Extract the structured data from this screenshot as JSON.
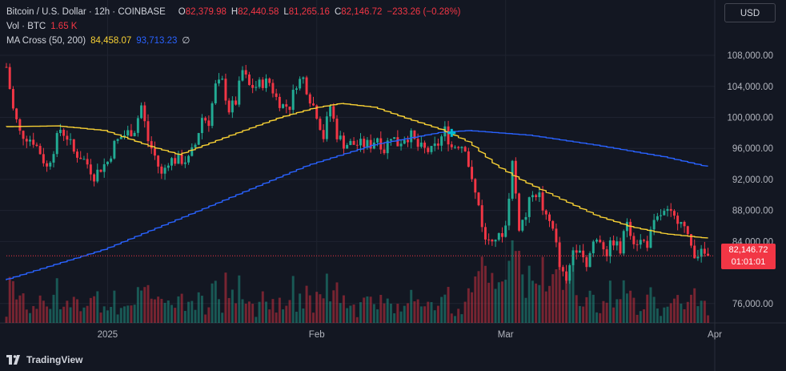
{
  "legend": {
    "symbol": "Bitcoin / U.S. Dollar · 12h · COINBASE",
    "o_label": "O",
    "o_value": "82,379.98",
    "h_label": "H",
    "h_value": "82,440.58",
    "l_label": "L",
    "l_value": "81,265.16",
    "c_label": "C",
    "c_value": "82,146.72",
    "change": "−233.26 (−0.28%)",
    "vol_label": "Vol · BTC",
    "vol_value": "1.65 K",
    "ma_label": "MA Cross (50, 200)",
    "ma_fast": "84,458.07",
    "ma_slow": "93,713.23",
    "ma_suffix": "∅"
  },
  "currency_button": "USD",
  "branding": "TradingView",
  "last_price": {
    "price": "82,146.72",
    "countdown": "01:01:01"
  },
  "colors": {
    "background": "#131722",
    "grid": "#1f2330",
    "up": "#22ab94",
    "down": "#f23645",
    "ma_fast": "#f7d034",
    "ma_slow": "#2962ff",
    "cross_marker": "#00bcd4"
  },
  "chart_data": {
    "type": "candlestick",
    "y_ticks": [
      "108,000.00",
      "104,000.00",
      "100,000.00",
      "96,000.00",
      "92,000.00",
      "88,000.00",
      "84,000.00",
      "76,000.00"
    ],
    "y_tick_values": [
      108000,
      104000,
      100000,
      96000,
      92000,
      88000,
      84000,
      76000
    ],
    "x_ticks": [
      {
        "label": "2025",
        "date": "2025-01-01"
      },
      {
        "label": "Feb",
        "date": "2025-02-01"
      },
      {
        "label": "Mar",
        "date": "2025-03-01"
      },
      {
        "label": "Apr",
        "date": "2025-04-01"
      }
    ],
    "ylim": [
      73500,
      111000
    ],
    "x_range": [
      "2024-12-17",
      "2025-04-01"
    ],
    "close_points": [
      [
        "2024-12-17",
        106500
      ],
      [
        "2024-12-18",
        101000
      ],
      [
        "2024-12-19",
        98000
      ],
      [
        "2024-12-20",
        97500
      ],
      [
        "2024-12-21",
        97000
      ],
      [
        "2024-12-22",
        95500
      ],
      [
        "2024-12-23",
        93500
      ],
      [
        "2024-12-24",
        96000
      ],
      [
        "2024-12-25",
        98500
      ],
      [
        "2024-12-26",
        97500
      ],
      [
        "2024-12-27",
        95500
      ],
      [
        "2024-12-28",
        95000
      ],
      [
        "2024-12-29",
        94000
      ],
      [
        "2024-12-30",
        92500
      ],
      [
        "2024-12-31",
        93500
      ],
      [
        "2025-01-01",
        94300
      ],
      [
        "2025-01-02",
        96500
      ],
      [
        "2025-01-03",
        97500
      ],
      [
        "2025-01-04",
        98000
      ],
      [
        "2025-01-05",
        98500
      ],
      [
        "2025-01-06",
        101500
      ],
      [
        "2025-01-07",
        97000
      ],
      [
        "2025-01-08",
        95000
      ],
      [
        "2025-01-09",
        92500
      ],
      [
        "2025-01-10",
        94500
      ],
      [
        "2025-01-11",
        94500
      ],
      [
        "2025-01-12",
        94500
      ],
      [
        "2025-01-13",
        94500
      ],
      [
        "2025-01-14",
        96500
      ],
      [
        "2025-01-15",
        100000
      ],
      [
        "2025-01-16",
        99500
      ],
      [
        "2025-01-17",
        104000
      ],
      [
        "2025-01-18",
        104500
      ],
      [
        "2025-01-19",
        101000
      ],
      [
        "2025-01-20",
        102000
      ],
      [
        "2025-01-21",
        106000
      ],
      [
        "2025-01-22",
        104000
      ],
      [
        "2025-01-23",
        104000
      ],
      [
        "2025-01-24",
        104500
      ],
      [
        "2025-01-25",
        104500
      ],
      [
        "2025-01-26",
        102500
      ],
      [
        "2025-01-27",
        101500
      ],
      [
        "2025-01-28",
        101500
      ],
      [
        "2025-01-29",
        104500
      ],
      [
        "2025-01-30",
        105000
      ],
      [
        "2025-01-31",
        102500
      ],
      [
        "2025-02-01",
        100500
      ],
      [
        "2025-02-02",
        97500
      ],
      [
        "2025-02-03",
        101500
      ],
      [
        "2025-02-04",
        97800
      ],
      [
        "2025-02-05",
        96600
      ],
      [
        "2025-02-06",
        96600
      ],
      [
        "2025-02-07",
        96500
      ],
      [
        "2025-02-08",
        96500
      ],
      [
        "2025-02-09",
        96500
      ],
      [
        "2025-02-10",
        97500
      ],
      [
        "2025-02-11",
        95800
      ],
      [
        "2025-02-12",
        97800
      ],
      [
        "2025-02-13",
        96600
      ],
      [
        "2025-02-14",
        97500
      ],
      [
        "2025-02-15",
        97600
      ],
      [
        "2025-02-16",
        96200
      ],
      [
        "2025-02-17",
        95800
      ],
      [
        "2025-02-18",
        95600
      ],
      [
        "2025-02-19",
        96600
      ],
      [
        "2025-02-20",
        98300
      ],
      [
        "2025-02-21",
        96200
      ],
      [
        "2025-02-22",
        96600
      ],
      [
        "2025-02-23",
        96300
      ],
      [
        "2025-02-24",
        91500
      ],
      [
        "2025-02-25",
        88700
      ],
      [
        "2025-02-26",
        84000
      ],
      [
        "2025-02-27",
        84800
      ],
      [
        "2025-02-28",
        84400
      ],
      [
        "2025-03-01",
        86000
      ],
      [
        "2025-03-02",
        94200
      ],
      [
        "2025-03-03",
        86000
      ],
      [
        "2025-03-04",
        87300
      ],
      [
        "2025-03-05",
        90600
      ],
      [
        "2025-03-06",
        89900
      ],
      [
        "2025-03-07",
        86800
      ],
      [
        "2025-03-08",
        86200
      ],
      [
        "2025-03-09",
        80700
      ],
      [
        "2025-03-10",
        78500
      ],
      [
        "2025-03-11",
        83000
      ],
      [
        "2025-03-12",
        83600
      ],
      [
        "2025-03-13",
        81000
      ],
      [
        "2025-03-14",
        84000
      ],
      [
        "2025-03-15",
        84300
      ],
      [
        "2025-03-16",
        82600
      ],
      [
        "2025-03-17",
        84100
      ],
      [
        "2025-03-18",
        82700
      ],
      [
        "2025-03-19",
        86800
      ],
      [
        "2025-03-20",
        84200
      ],
      [
        "2025-03-21",
        84000
      ],
      [
        "2025-03-22",
        83800
      ],
      [
        "2025-03-23",
        86100
      ],
      [
        "2025-03-24",
        87500
      ],
      [
        "2025-03-25",
        87600
      ],
      [
        "2025-03-26",
        86900
      ],
      [
        "2025-03-27",
        87200
      ],
      [
        "2025-03-28",
        84300
      ],
      [
        "2025-03-29",
        82600
      ],
      [
        "2025-03-30",
        82400
      ],
      [
        "2025-03-31",
        82146.72
      ]
    ],
    "ma_fast_points": [
      [
        "2024-12-17",
        98800
      ],
      [
        "2024-12-25",
        98900
      ],
      [
        "2025-01-01",
        98300
      ],
      [
        "2025-01-08",
        96200
      ],
      [
        "2025-01-12",
        95200
      ],
      [
        "2025-01-16",
        96500
      ],
      [
        "2025-01-20",
        97800
      ],
      [
        "2025-01-27",
        100000
      ],
      [
        "2025-02-01",
        101200
      ],
      [
        "2025-02-05",
        101800
      ],
      [
        "2025-02-10",
        101300
      ],
      [
        "2025-02-15",
        99800
      ],
      [
        "2025-02-20",
        98400
      ],
      [
        "2025-02-24",
        96800
      ],
      [
        "2025-02-28",
        93800
      ],
      [
        "2025-03-04",
        91800
      ],
      [
        "2025-03-10",
        89300
      ],
      [
        "2025-03-15",
        87300
      ],
      [
        "2025-03-20",
        85900
      ],
      [
        "2025-03-25",
        85000
      ],
      [
        "2025-03-31",
        84458.07
      ]
    ],
    "ma_slow_points": [
      [
        "2024-12-17",
        79000
      ],
      [
        "2025-01-01",
        83000
      ],
      [
        "2025-01-15",
        88000
      ],
      [
        "2025-01-31",
        93800
      ],
      [
        "2025-02-10",
        96500
      ],
      [
        "2025-02-20",
        98100
      ],
      [
        "2025-02-24",
        98300
      ],
      [
        "2025-03-05",
        97700
      ],
      [
        "2025-03-15",
        96400
      ],
      [
        "2025-03-25",
        94900
      ],
      [
        "2025-03-31",
        93713.23
      ]
    ],
    "cross_marker": {
      "date": "2025-02-21",
      "value": 98000
    }
  }
}
